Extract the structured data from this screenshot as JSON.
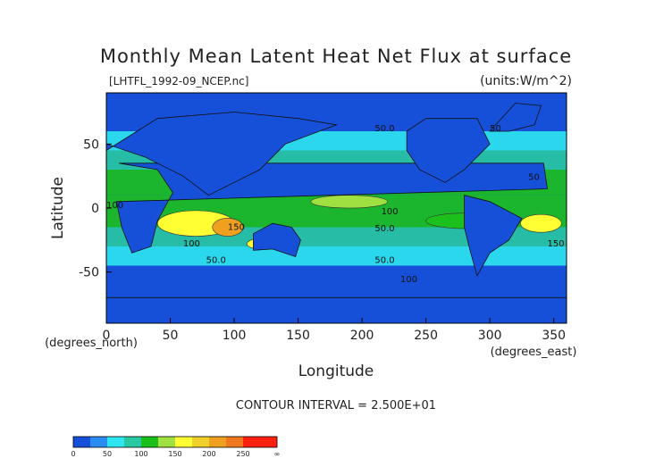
{
  "chart_data": {
    "type": "heatmap",
    "title": "Monthly Mean Latent Heat Net Flux at surface",
    "subtitle": "[LHTFL_1992-09_NCEP.nc]",
    "units": "(units:W/m^2)",
    "xlabel": "Longitude",
    "ylabel": "Latitude",
    "xunit": "(degrees_east)",
    "yunit": "(degrees_north)",
    "xlim": [
      0,
      360
    ],
    "ylim": [
      -90,
      90
    ],
    "xticks": [
      "0",
      "50",
      "100",
      "150",
      "200",
      "250",
      "300",
      "350"
    ],
    "xtick_values": [
      0,
      50,
      100,
      150,
      200,
      250,
      300,
      350
    ],
    "yticks": [
      "50",
      "0",
      "-50"
    ],
    "ytick_values": [
      50,
      0,
      -50
    ],
    "contour_note": "CONTOUR INTERVAL = 2.500E+01",
    "contour_labels": [
      "50.0",
      "100",
      "150",
      "50",
      "100",
      "50.0",
      "50.0",
      "50.0",
      "100",
      "150",
      "50",
      "100"
    ],
    "colorbar": {
      "labels": [
        "0",
        "50",
        "100",
        "150",
        "200",
        "250",
        "∞"
      ],
      "bins": [
        {
          "from": 0,
          "to": 25,
          "color": "#1750d8"
        },
        {
          "from": 25,
          "to": 50,
          "color": "#2a8cf0"
        },
        {
          "from": 50,
          "to": 75,
          "color": "#2ee6f0"
        },
        {
          "from": 75,
          "to": 100,
          "color": "#28c8a0"
        },
        {
          "from": 100,
          "to": 125,
          "color": "#1cc01c"
        },
        {
          "from": 125,
          "to": 150,
          "color": "#a0e040"
        },
        {
          "from": 150,
          "to": 175,
          "color": "#ffff33"
        },
        {
          "from": 175,
          "to": 200,
          "color": "#f0d02a"
        },
        {
          "from": 200,
          "to": 225,
          "color": "#f0a020"
        },
        {
          "from": 225,
          "to": 250,
          "color": "#f07820"
        },
        {
          "from": 250,
          "to": 300,
          "color": "#ff2010"
        }
      ]
    }
  }
}
